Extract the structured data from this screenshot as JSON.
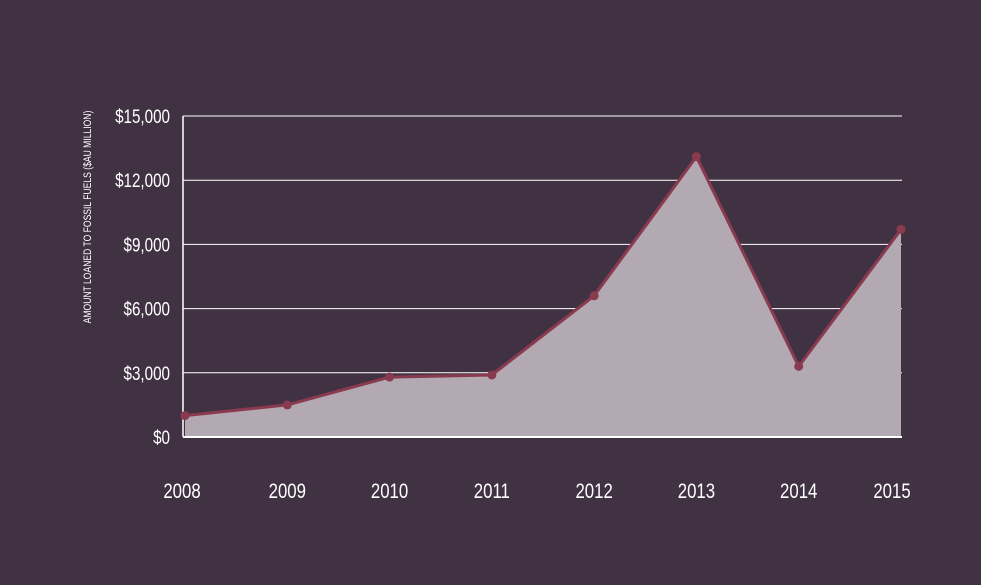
{
  "chart_data": {
    "type": "area",
    "title": "",
    "xlabel": "",
    "ylabel": "AMOUNT LOANED TO FOSSIL FUELS ($AU MILLION)",
    "categories": [
      "2008",
      "2009",
      "2010",
      "2011",
      "2012",
      "2013",
      "2014",
      "2015"
    ],
    "values": [
      1000,
      1500,
      2800,
      2900,
      6600,
      13100,
      3300,
      9700
    ],
    "ylim": [
      0,
      15000
    ],
    "yticks": [
      0,
      3000,
      6000,
      9000,
      12000,
      15000
    ],
    "ytick_labels": [
      "$0",
      "$3,000",
      "$6,000",
      "$9,000",
      "$12,000",
      "$15,000"
    ],
    "grid": true,
    "legend": "none",
    "colors": {
      "background": "#413243",
      "line": "#8a3a4e",
      "fill": "#b2a9b2",
      "grid": "#ffffff",
      "text": "#ffffff"
    }
  }
}
